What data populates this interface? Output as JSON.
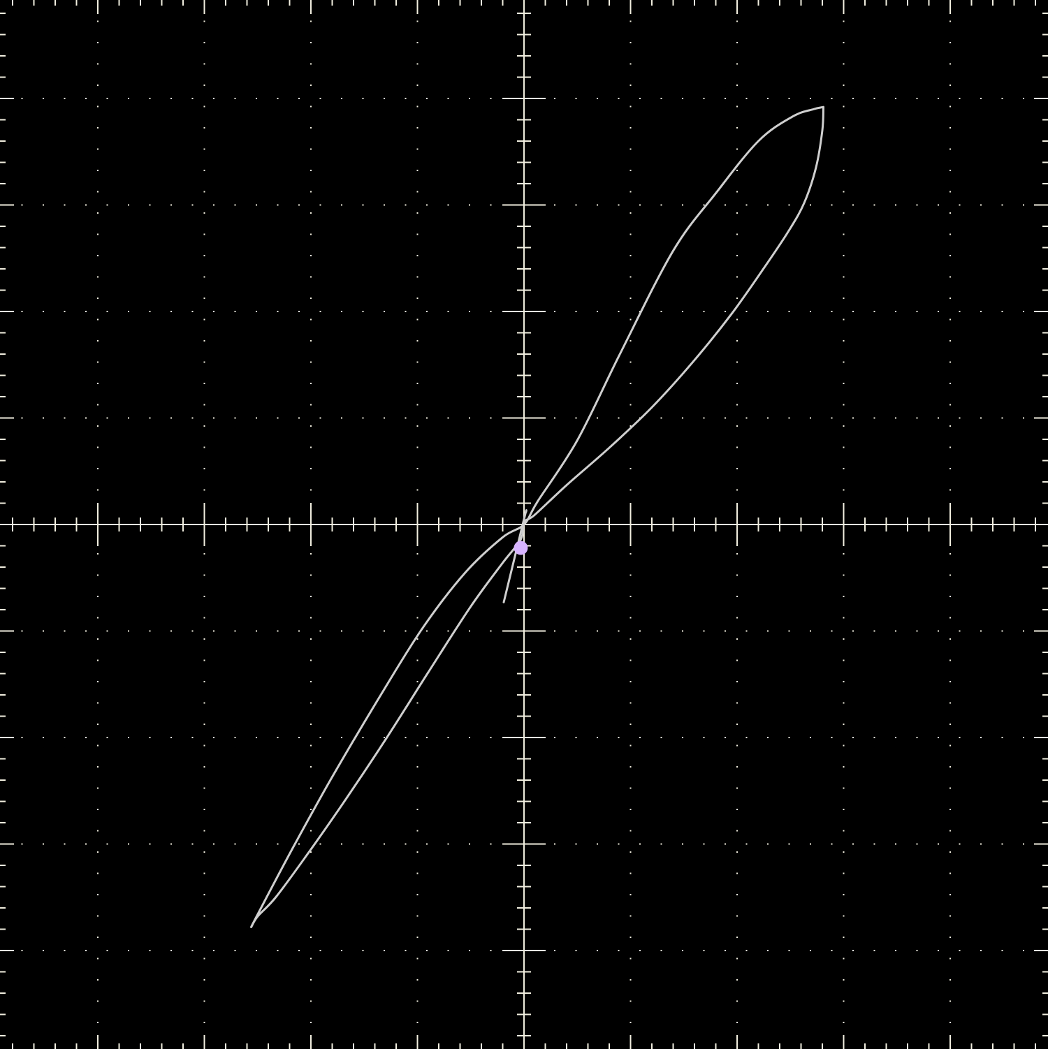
{
  "colors": {
    "background": "#000000",
    "graticule": "#f2efe0",
    "trace": "#cfcfcf",
    "marker": "#d7b4ff"
  },
  "chart_data": {
    "type": "line",
    "title": "",
    "xlabel": "",
    "ylabel": "",
    "xlim": [
      -4.9,
      4.9
    ],
    "ylim": [
      -4.9,
      4.9
    ],
    "major_divisions": 1,
    "minor_per_division": 5,
    "grid": true,
    "legend": "none",
    "series": [
      {
        "type": "loop",
        "x": [
          2.81,
          2.8,
          2.74,
          2.63,
          2.48,
          2.26,
          1.95,
          1.58,
          1.2,
          0.8,
          0.4,
          0.1,
          0.0,
          -0.03,
          -0.2,
          -0.5,
          -0.9,
          -1.3,
          -1.7,
          -2.05,
          -2.33,
          -2.5,
          -2.56,
          -2.52,
          -2.4,
          -2.15,
          -1.8,
          -1.35,
          -0.95,
          -0.55,
          -0.2,
          0.0,
          0.13,
          0.5,
          0.9,
          1.4,
          1.8,
          2.2,
          2.52,
          2.72,
          2.81
        ],
        "y": [
          3.92,
          3.7,
          3.35,
          3.02,
          2.75,
          2.42,
          1.98,
          1.52,
          1.1,
          0.72,
          0.37,
          0.09,
          0.02,
          -0.14,
          -0.36,
          -0.77,
          -1.39,
          -2.02,
          -2.62,
          -3.12,
          -3.5,
          -3.68,
          -3.78,
          -3.7,
          -3.47,
          -3.0,
          -2.37,
          -1.61,
          -0.97,
          -0.45,
          -0.12,
          0.0,
          0.22,
          0.79,
          1.6,
          2.57,
          3.11,
          3.6,
          3.83,
          3.9,
          3.92
        ]
      },
      {
        "type": "segment",
        "x": [
          -0.19,
          0.0,
          0.02
        ],
        "y": [
          -0.73,
          0.05,
          0.12
        ]
      }
    ],
    "marker": {
      "x": -0.03,
      "y": -0.22
    }
  }
}
